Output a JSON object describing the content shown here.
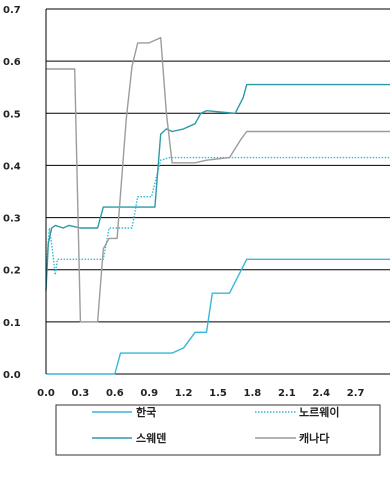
{
  "chart_data": {
    "type": "line",
    "title": "",
    "xlabel": "",
    "ylabel": "",
    "xlim": [
      0,
      3.0
    ],
    "ylim": [
      0,
      0.7
    ],
    "x_ticks": [
      "0.0",
      "0.3",
      "0.6",
      "0.9",
      "1.2",
      "1.5",
      "1.8",
      "2.1",
      "2.4",
      "2.7"
    ],
    "y_ticks": [
      "0.0",
      "0.1",
      "0.2",
      "0.3",
      "0.4",
      "0.5",
      "0.6",
      "0.7"
    ],
    "grid": "horizontal",
    "legend_position": "bottom",
    "series": [
      {
        "name": "한국",
        "color": "#38b7d6",
        "style": "solid",
        "points": [
          [
            0,
            0
          ],
          [
            0.6,
            0
          ],
          [
            0.65,
            0.04
          ],
          [
            1.1,
            0.04
          ],
          [
            1.2,
            0.05
          ],
          [
            1.3,
            0.08
          ],
          [
            1.4,
            0.08
          ],
          [
            1.45,
            0.155
          ],
          [
            1.6,
            0.155
          ],
          [
            1.75,
            0.22
          ],
          [
            3.0,
            0.22
          ]
        ]
      },
      {
        "name": "노르웨이",
        "color": "#38b7d6",
        "style": "dotted",
        "points": [
          [
            0,
            0.2
          ],
          [
            0.03,
            0.28
          ],
          [
            0.06,
            0.23
          ],
          [
            0.08,
            0.19
          ],
          [
            0.1,
            0.22
          ],
          [
            0.5,
            0.22
          ],
          [
            0.55,
            0.28
          ],
          [
            0.75,
            0.28
          ],
          [
            0.8,
            0.34
          ],
          [
            0.92,
            0.34
          ],
          [
            1.0,
            0.41
          ],
          [
            1.08,
            0.415
          ],
          [
            3.0,
            0.415
          ]
        ]
      },
      {
        "name": "스웨덴",
        "color": "#2b9aa6",
        "style": "solid",
        "points": [
          [
            0,
            0.16
          ],
          [
            0.02,
            0.25
          ],
          [
            0.05,
            0.28
          ],
          [
            0.08,
            0.285
          ],
          [
            0.15,
            0.28
          ],
          [
            0.2,
            0.285
          ],
          [
            0.3,
            0.28
          ],
          [
            0.45,
            0.28
          ],
          [
            0.5,
            0.32
          ],
          [
            0.95,
            0.32
          ],
          [
            1.0,
            0.46
          ],
          [
            1.05,
            0.47
          ],
          [
            1.1,
            0.465
          ],
          [
            1.2,
            0.47
          ],
          [
            1.3,
            0.48
          ],
          [
            1.35,
            0.5
          ],
          [
            1.4,
            0.505
          ],
          [
            1.65,
            0.5
          ],
          [
            1.72,
            0.53
          ],
          [
            1.75,
            0.555
          ],
          [
            2.0,
            0.555
          ],
          [
            2.5,
            0.555
          ],
          [
            3.0,
            0.555
          ]
        ]
      },
      {
        "name": "캐나다",
        "color": "#9c9c9c",
        "style": "solid",
        "points": [
          [
            0,
            0.585
          ],
          [
            0.25,
            0.585
          ],
          [
            0.3,
            0.1
          ],
          [
            0.45,
            0.1
          ],
          [
            0.5,
            0.24
          ],
          [
            0.55,
            0.26
          ],
          [
            0.62,
            0.26
          ],
          [
            0.7,
            0.49
          ],
          [
            0.75,
            0.59
          ],
          [
            0.8,
            0.635
          ],
          [
            0.9,
            0.635
          ],
          [
            0.95,
            0.64
          ],
          [
            1.0,
            0.645
          ],
          [
            1.05,
            0.5
          ],
          [
            1.1,
            0.405
          ],
          [
            1.3,
            0.405
          ],
          [
            1.4,
            0.41
          ],
          [
            1.6,
            0.415
          ],
          [
            1.7,
            0.45
          ],
          [
            1.75,
            0.465
          ],
          [
            2.0,
            0.465
          ],
          [
            2.5,
            0.465
          ],
          [
            3.0,
            0.465
          ]
        ]
      }
    ]
  }
}
